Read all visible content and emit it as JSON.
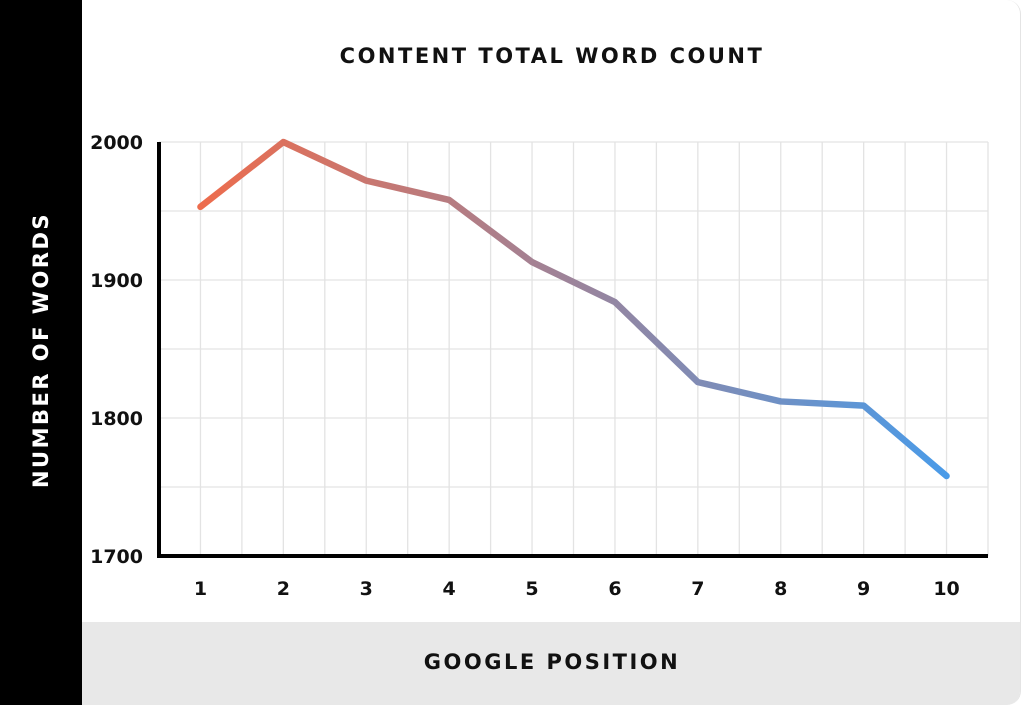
{
  "chart_data": {
    "type": "line",
    "title": "CONTENT TOTAL WORD COUNT",
    "xlabel": "GOOGLE POSITION",
    "ylabel": "NUMBER OF WORDS",
    "categories": [
      "1",
      "2",
      "3",
      "4",
      "5",
      "6",
      "7",
      "8",
      "9",
      "10"
    ],
    "values": [
      1953,
      2000,
      1972,
      1958,
      1913,
      1884,
      1826,
      1812,
      1809,
      1758
    ],
    "ylim": [
      1700,
      2000
    ],
    "yticks": [
      "1700",
      "1800",
      "1900",
      "2000"
    ],
    "grid": true,
    "line_gradient": [
      "#ed6c4d",
      "#4a9be8"
    ],
    "legend": "none"
  }
}
